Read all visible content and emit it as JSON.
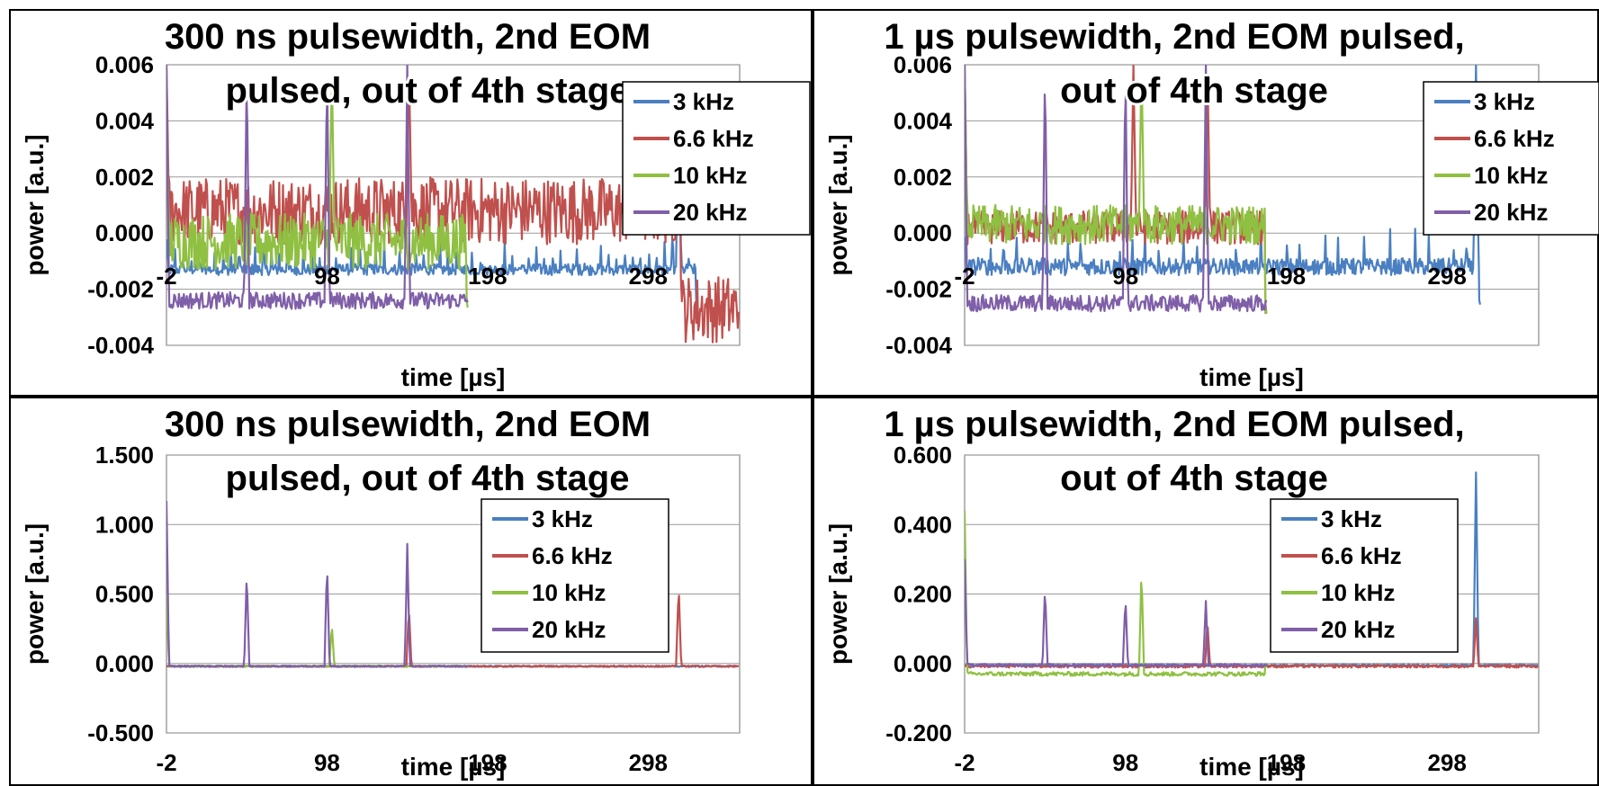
{
  "colors": {
    "3 kHz": "#4a7fc1",
    "6.6 kHz": "#c0504d",
    "10 kHz": "#8fc042",
    "20 kHz": "#7f5fa8"
  },
  "chart_data": [
    {
      "type": "line",
      "title_lines": [
        "300 ns pulsewidth, 2nd EOM",
        "pulsed, out of 4th stage"
      ],
      "xlabel": "time [µs]",
      "ylabel": "power [a.u.]",
      "xlim": [
        -2,
        355
      ],
      "ylim": [
        -0.004,
        0.006
      ],
      "xticks": [
        "-2",
        "98",
        "198",
        "298"
      ],
      "yticks": [
        "-0.004",
        "-0.002",
        "0.000",
        "0.002",
        "0.004",
        "0.006"
      ],
      "xtick_row": "inside",
      "legend": "top-right",
      "grid": true,
      "series": [
        {
          "name": "3 kHz",
          "baseline": -0.0013,
          "noise": 0.0002,
          "start": -2,
          "end": 328,
          "after_level": -0.0025,
          "pulse_period": 5,
          "pulse_height": 0.001,
          "peaks": [
            [
              317,
              0.006
            ]
          ]
        },
        {
          "name": "6.6 kHz",
          "baseline": 0.0008,
          "noise": 0.0012,
          "start": -2,
          "end": 355,
          "after_level": -0.0027,
          "region_end": 317,
          "peaks": [
            [
              -2,
              0.006
            ],
            [
              149,
              0.006
            ],
            [
              317,
              0.006
            ]
          ]
        },
        {
          "name": "10 kHz",
          "baseline": -0.0003,
          "noise": 0.001,
          "start": -2,
          "end": 185,
          "after_level": -0.0026,
          "peaks": [
            [
              -2,
              0.005
            ],
            [
              101,
              0.006
            ]
          ]
        },
        {
          "name": "20 kHz",
          "baseline": -0.0024,
          "noise": 0.0003,
          "start": -2,
          "end": 185,
          "after_level": -0.0024,
          "peaks": [
            [
              -2,
              0.006
            ],
            [
              48,
              0.006
            ],
            [
              98,
              0.006
            ],
            [
              148,
              0.006
            ]
          ]
        }
      ]
    },
    {
      "type": "line",
      "title_lines": [
        "1 µs pulsewidth, 2nd EOM pulsed,",
        "out of 4th stage"
      ],
      "xlabel": "time [µs]",
      "ylabel": "power [a.u.]",
      "xlim": [
        -2,
        355
      ],
      "ylim": [
        -0.004,
        0.006
      ],
      "xticks": [
        "-2",
        "98",
        "198",
        "298"
      ],
      "yticks": [
        "-0.004",
        "-0.002",
        "0.000",
        "0.002",
        "0.004",
        "0.006"
      ],
      "xtick_row": "inside",
      "legend": "top-right",
      "grid": true,
      "series": [
        {
          "name": "3 kHz",
          "baseline": -0.0012,
          "noise": 0.0003,
          "start": -2,
          "end": 318,
          "after_level": -0.0025,
          "pulse_period": 8,
          "pulse_height": 0.0012,
          "peaks": [
            [
              316,
              0.006
            ]
          ]
        },
        {
          "name": "6.6 kHz",
          "baseline": 0.0002,
          "noise": 0.0006,
          "start": -2,
          "end": 185,
          "after_level": -0.0027,
          "peaks": [
            [
              -2,
              0.006
            ],
            [
              103,
              0.006
            ],
            [
              149,
              0.006
            ]
          ]
        },
        {
          "name": "10 kHz",
          "baseline": 0.0003,
          "noise": 0.0007,
          "start": -2,
          "end": 185,
          "after_level": -0.0026,
          "peaks": [
            [
              -2,
              0.006
            ],
            [
              108,
              0.006
            ]
          ]
        },
        {
          "name": "20 kHz",
          "baseline": -0.0025,
          "noise": 0.0003,
          "start": -2,
          "end": 185,
          "after_level": -0.0025,
          "peaks": [
            [
              -2,
              0.006
            ],
            [
              48,
              0.006
            ],
            [
              98,
              0.006
            ],
            [
              148,
              0.006
            ]
          ]
        }
      ]
    },
    {
      "type": "line",
      "title_lines": [
        "300 ns pulsewidth, 2nd EOM",
        "pulsed, out of 4th stage"
      ],
      "xlabel": "time [µs]",
      "ylabel": "power [a.u.]",
      "xlim": [
        -2,
        355
      ],
      "ylim": [
        -0.5,
        1.5
      ],
      "xticks": [
        "-2",
        "98",
        "198",
        "298"
      ],
      "yticks": [
        "-0.500",
        "0.000",
        "0.500",
        "1.000",
        "1.500"
      ],
      "xtick_row": "below",
      "legend": "middle-right",
      "grid": true,
      "series": [
        {
          "name": "3 kHz",
          "baseline": -0.02,
          "noise": 0.005,
          "start": -2,
          "end": 355,
          "after_level": -0.02,
          "peaks": []
        },
        {
          "name": "6.6 kHz",
          "baseline": -0.02,
          "noise": 0.005,
          "start": -2,
          "end": 355,
          "after_level": -0.02,
          "peaks": [
            [
              149,
              0.4
            ],
            [
              317,
              0.56
            ]
          ]
        },
        {
          "name": "10 kHz",
          "baseline": -0.02,
          "noise": 0.005,
          "start": -2,
          "end": 185,
          "after_level": -0.02,
          "peaks": [
            [
              -2,
              0.5
            ],
            [
              101,
              0.28
            ]
          ]
        },
        {
          "name": "20 kHz",
          "baseline": -0.02,
          "noise": 0.005,
          "start": -2,
          "end": 185,
          "after_level": -0.02,
          "peaks": [
            [
              -2,
              1.17
            ],
            [
              48,
              0.66
            ],
            [
              98,
              0.72
            ],
            [
              148,
              0.86
            ]
          ]
        }
      ]
    },
    {
      "type": "line",
      "title_lines": [
        "1 µs pulsewidth, 2nd EOM pulsed,",
        "out of 4th stage"
      ],
      "xlabel": "time [µs]",
      "ylabel": "power [a.u.]",
      "xlim": [
        -2,
        355
      ],
      "ylim": [
        -0.2,
        0.6
      ],
      "xticks": [
        "-2",
        "98",
        "198",
        "298"
      ],
      "yticks": [
        "-0.200",
        "0.000",
        "0.200",
        "0.400",
        "0.600"
      ],
      "xtick_row": "below",
      "legend": "middle-right",
      "grid": true,
      "series": [
        {
          "name": "3 kHz",
          "baseline": -0.005,
          "noise": 0.003,
          "start": -2,
          "end": 355,
          "after_level": -0.005,
          "peaks": [
            [
              316,
              0.55
            ]
          ]
        },
        {
          "name": "6.6 kHz",
          "baseline": -0.008,
          "noise": 0.004,
          "start": -2,
          "end": 355,
          "after_level": -0.008,
          "peaks": [
            [
              149,
              0.12
            ],
            [
              316,
              0.13
            ]
          ]
        },
        {
          "name": "10 kHz",
          "baseline": -0.03,
          "noise": 0.006,
          "start": -2,
          "end": 185,
          "after_level": -0.005,
          "peaks": [
            [
              -2,
              0.44
            ],
            [
              108,
              0.27
            ]
          ]
        },
        {
          "name": "20 kHz",
          "baseline": -0.005,
          "noise": 0.004,
          "start": -2,
          "end": 185,
          "after_level": -0.005,
          "peaks": [
            [
              -2,
              0.3
            ],
            [
              48,
              0.22
            ],
            [
              98,
              0.19
            ],
            [
              148,
              0.18
            ]
          ]
        }
      ]
    }
  ]
}
